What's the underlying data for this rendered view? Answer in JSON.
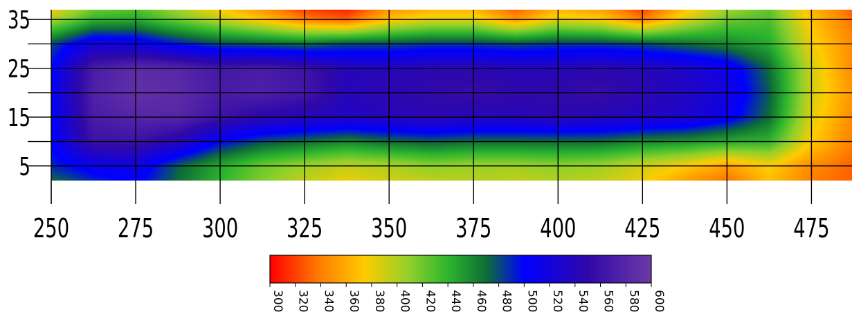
{
  "chart_data": {
    "type": "heatmap",
    "title": "",
    "xlabel": "",
    "ylabel": "",
    "x_range": [
      250,
      487
    ],
    "y_range": [
      2,
      37
    ],
    "x_ticks": [
      "250",
      "275",
      "300",
      "325",
      "350",
      "375",
      "400",
      "425",
      "450",
      "475"
    ],
    "x_tick_values": [
      250,
      275,
      300,
      325,
      350,
      375,
      400,
      425,
      450,
      475
    ],
    "y_ticks": [
      "35",
      "25",
      "15",
      "5"
    ],
    "y_tick_values": [
      35,
      25,
      15,
      5
    ],
    "grid": true,
    "x_grid_values": [
      275,
      300,
      325,
      350,
      375,
      400,
      425,
      450,
      475
    ],
    "y_grid_values": [
      35,
      30,
      25,
      20,
      15,
      10,
      5
    ],
    "value_range": [
      300,
      600
    ],
    "colorbar": {
      "ticks": [
        "300",
        "320",
        "340",
        "360",
        "380",
        "400",
        "420",
        "440",
        "460",
        "480",
        "500",
        "520",
        "540",
        "560",
        "580",
        "600"
      ],
      "tick_values": [
        300,
        320,
        340,
        360,
        380,
        400,
        420,
        440,
        460,
        480,
        500,
        520,
        540,
        560,
        580,
        600
      ],
      "colors": [
        {
          "value": 300,
          "color": "#ff0000"
        },
        {
          "value": 340,
          "color": "#ff8000"
        },
        {
          "value": 375,
          "color": "#ffcc00"
        },
        {
          "value": 410,
          "color": "#8fd02c"
        },
        {
          "value": 440,
          "color": "#2db52d"
        },
        {
          "value": 470,
          "color": "#0e6e36"
        },
        {
          "value": 500,
          "color": "#0000ff"
        },
        {
          "value": 550,
          "color": "#3008a8"
        },
        {
          "value": 600,
          "color": "#6e3aa6"
        }
      ]
    },
    "x": [
      250,
      262.5,
      275,
      287.5,
      300,
      312.5,
      325,
      337.5,
      350,
      362.5,
      375,
      387.5,
      400,
      412.5,
      425,
      437.5,
      450,
      462.5,
      475,
      487
    ],
    "y": [
      2,
      5,
      10,
      15,
      20,
      25,
      30,
      35,
      37
    ],
    "z": [
      [
        470,
        490,
        505,
        470,
        440,
        415,
        395,
        380,
        390,
        395,
        400,
        395,
        400,
        395,
        380,
        355,
        335,
        370,
        340,
        330
      ],
      [
        490,
        510,
        515,
        475,
        445,
        420,
        405,
        395,
        400,
        410,
        405,
        405,
        410,
        405,
        390,
        375,
        355,
        375,
        345,
        330
      ],
      [
        500,
        560,
        560,
        540,
        500,
        480,
        470,
        460,
        470,
        475,
        470,
        470,
        470,
        470,
        460,
        455,
        445,
        440,
        375,
        340
      ],
      [
        500,
        570,
        580,
        580,
        560,
        545,
        540,
        535,
        540,
        545,
        540,
        540,
        545,
        540,
        535,
        530,
        510,
        470,
        385,
        345
      ],
      [
        505,
        575,
        590,
        585,
        570,
        575,
        565,
        540,
        545,
        550,
        555,
        550,
        550,
        555,
        545,
        535,
        520,
        475,
        390,
        350
      ],
      [
        500,
        570,
        585,
        580,
        565,
        570,
        560,
        540,
        540,
        545,
        545,
        540,
        540,
        545,
        540,
        530,
        515,
        470,
        390,
        345
      ],
      [
        480,
        520,
        515,
        495,
        480,
        475,
        470,
        480,
        480,
        485,
        485,
        480,
        485,
        485,
        480,
        470,
        460,
        445,
        380,
        345
      ],
      [
        400,
        440,
        445,
        420,
        395,
        370,
        340,
        330,
        370,
        385,
        385,
        350,
        385,
        375,
        340,
        385,
        420,
        430,
        370,
        335
      ],
      [
        380,
        420,
        430,
        405,
        375,
        350,
        320,
        310,
        350,
        365,
        365,
        330,
        365,
        355,
        320,
        370,
        405,
        425,
        365,
        330
      ]
    ]
  }
}
